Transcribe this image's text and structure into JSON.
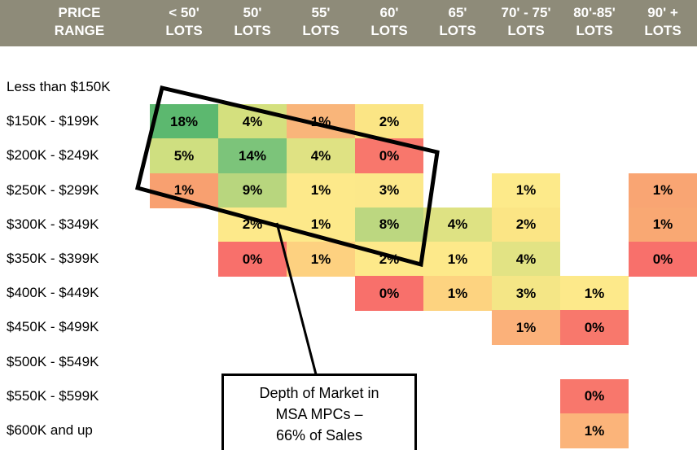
{
  "header": {
    "row_label": [
      "PRICE",
      "RANGE"
    ],
    "columns": [
      [
        "< 50'",
        "LOTS"
      ],
      [
        "50'",
        "LOTS"
      ],
      [
        "55'",
        "LOTS"
      ],
      [
        "60'",
        "LOTS"
      ],
      [
        "65'",
        "LOTS"
      ],
      [
        "70' - 75'",
        "LOTS"
      ],
      [
        "80'-85'",
        "LOTS"
      ],
      [
        "90' +",
        "LOTS"
      ]
    ]
  },
  "table": {
    "rows": [
      {
        "label": "Less than $150K",
        "cells": [
          null,
          null,
          null,
          null,
          null,
          null,
          null,
          null
        ]
      },
      {
        "label": "$150K - $199K",
        "cells": [
          {
            "text": "18%",
            "color": "#5cb86f"
          },
          {
            "text": "4%",
            "color": "#d4e07e"
          },
          {
            "text": "1%",
            "color": "#f9b57a"
          },
          {
            "text": "2%",
            "color": "#fbe585"
          },
          null,
          null,
          null,
          null
        ]
      },
      {
        "label": "$200K - $249K",
        "cells": [
          {
            "text": "5%",
            "color": "#cfdf80"
          },
          {
            "text": "14%",
            "color": "#7cc47a"
          },
          {
            "text": "4%",
            "color": "#dfe283"
          },
          {
            "text": "0%",
            "color": "#f8776c"
          },
          null,
          null,
          null,
          null
        ]
      },
      {
        "label": "$250K - $299K",
        "cells": [
          {
            "text": "1%",
            "color": "#f8a070"
          },
          {
            "text": "9%",
            "color": "#b8d67e"
          },
          {
            "text": "1%",
            "color": "#fde98a"
          },
          {
            "text": "3%",
            "color": "#fce88a"
          },
          null,
          {
            "text": "1%",
            "color": "#fdea8a"
          },
          null,
          {
            "text": "1%",
            "color": "#f9a573"
          }
        ]
      },
      {
        "label": "$300K - $349K",
        "cells": [
          null,
          {
            "text": "2%",
            "color": "#fde98a"
          },
          {
            "text": "1%",
            "color": "#fde98a"
          },
          {
            "text": "8%",
            "color": "#bcd780"
          },
          {
            "text": "4%",
            "color": "#dee283"
          },
          {
            "text": "2%",
            "color": "#fbe585"
          },
          null,
          {
            "text": "1%",
            "color": "#f9a873"
          }
        ]
      },
      {
        "label": "$350K - $399K",
        "cells": [
          null,
          {
            "text": "0%",
            "color": "#f8706b"
          },
          {
            "text": "1%",
            "color": "#fdd180"
          },
          {
            "text": "2%",
            "color": "#fde98a"
          },
          {
            "text": "1%",
            "color": "#fde98a"
          },
          {
            "text": "4%",
            "color": "#e2e384"
          },
          null,
          {
            "text": "0%",
            "color": "#f8706b"
          }
        ]
      },
      {
        "label": "$400K - $449K",
        "cells": [
          null,
          null,
          null,
          {
            "text": "0%",
            "color": "#f8706b"
          },
          {
            "text": "1%",
            "color": "#fdd380"
          },
          {
            "text": "3%",
            "color": "#f4e686"
          },
          {
            "text": "1%",
            "color": "#fde98a"
          },
          null
        ]
      },
      {
        "label": "$450K - $499K",
        "cells": [
          null,
          null,
          null,
          null,
          null,
          {
            "text": "1%",
            "color": "#fbb17a"
          },
          {
            "text": "0%",
            "color": "#f8786c"
          },
          null
        ]
      },
      {
        "label": "$500K - $549K",
        "cells": [
          null,
          null,
          null,
          null,
          null,
          null,
          null,
          null
        ]
      },
      {
        "label": "$550K - $599K",
        "cells": [
          null,
          null,
          null,
          null,
          null,
          null,
          {
            "text": "0%",
            "color": "#f8776c"
          },
          null
        ]
      },
      {
        "label": "$600K and up",
        "cells": [
          null,
          null,
          null,
          null,
          null,
          null,
          {
            "text": "1%",
            "color": "#fbb47a"
          },
          null
        ]
      }
    ]
  },
  "annotation": {
    "lines": [
      "Depth of Market in",
      "MSA MPCs –",
      "66% of Sales"
    ]
  }
}
